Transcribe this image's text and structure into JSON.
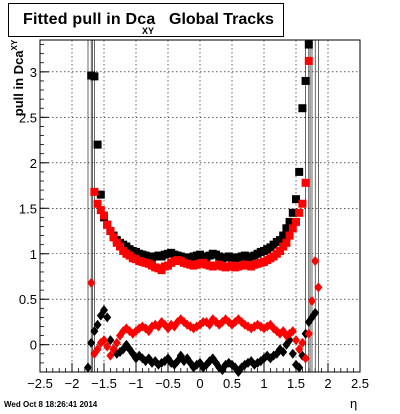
{
  "title": {
    "main": "Fitted pull in Dca",
    "sub": "XY",
    "rest": "Global Tracks"
  },
  "ylabel": {
    "main": "pull in Dca",
    "sub": "XY"
  },
  "xlabel": "η",
  "timestamp": "Wed Oct  8 18:26:41 2014",
  "chart_data": {
    "type": "scatter",
    "xlim": [
      -2.5,
      2.5
    ],
    "ylim": [
      -0.3,
      3.35
    ],
    "xticks": [
      -2.5,
      -2,
      -1.5,
      -1,
      -0.5,
      0,
      0.5,
      1,
      1.5,
      2,
      2.5
    ],
    "xtick_labels": [
      "−2.5",
      "−2",
      "−1.5",
      "−1",
      "−0.5",
      "0",
      "0.5",
      "1",
      "1.5",
      "2",
      "2.5"
    ],
    "yticks": [
      0,
      0.5,
      1,
      1.5,
      2,
      2.5,
      3
    ],
    "ytick_labels": [
      "0",
      "0.5",
      "1",
      "1.5",
      "2",
      "2.5",
      "3"
    ],
    "grid": true,
    "series": [
      {
        "marker": "square",
        "color": "#000000",
        "x": [
          -1.7,
          -1.65,
          -1.6,
          -1.55,
          -1.5,
          -1.45,
          -1.4,
          -1.35,
          -1.3,
          -1.25,
          -1.2,
          -1.15,
          -1.1,
          -1.05,
          -1,
          -0.95,
          -0.9,
          -0.85,
          -0.8,
          -0.75,
          -0.7,
          -0.65,
          -0.6,
          -0.55,
          -0.5,
          -0.45,
          -0.4,
          -0.35,
          -0.3,
          -0.25,
          -0.2,
          -0.15,
          -0.1,
          -0.05,
          0,
          0.05,
          0.1,
          0.15,
          0.2,
          0.25,
          0.3,
          0.35,
          0.4,
          0.45,
          0.5,
          0.55,
          0.6,
          0.65,
          0.7,
          0.75,
          0.8,
          0.85,
          0.9,
          0.95,
          1,
          1.05,
          1.1,
          1.15,
          1.2,
          1.25,
          1.3,
          1.35,
          1.4,
          1.45,
          1.5,
          1.55,
          1.6,
          1.65,
          1.7
        ],
        "y": [
          2.96,
          2.95,
          2.2,
          1.65,
          1.4,
          1.32,
          1.25,
          1.2,
          1.15,
          1.12,
          1.1,
          1.08,
          1.05,
          1.03,
          1.02,
          1.0,
          0.99,
          0.98,
          0.97,
          0.96,
          0.97,
          0.98,
          0.97,
          0.99,
          1.0,
          1.01,
          0.99,
          0.98,
          0.97,
          0.96,
          0.95,
          0.96,
          0.97,
          0.98,
          0.99,
          0.97,
          0.96,
          0.98,
          1.0,
          0.99,
          0.97,
          0.95,
          0.96,
          0.97,
          0.96,
          0.95,
          0.96,
          0.97,
          0.98,
          0.96,
          0.97,
          0.98,
          1.0,
          1.02,
          1.03,
          1.05,
          1.07,
          1.1,
          1.13,
          1.15,
          1.2,
          1.28,
          1.35,
          1.45,
          1.6,
          1.9,
          2.6,
          2.9,
          3.3
        ]
      },
      {
        "marker": "square",
        "color": "#ff0000",
        "x": [
          -1.65,
          -1.6,
          -1.55,
          -1.5,
          -1.45,
          -1.4,
          -1.35,
          -1.3,
          -1.25,
          -1.2,
          -1.15,
          -1.1,
          -1.05,
          -1,
          -0.95,
          -0.9,
          -0.85,
          -0.8,
          -0.75,
          -0.7,
          -0.65,
          -0.6,
          -0.55,
          -0.5,
          -0.45,
          -0.4,
          -0.35,
          -0.3,
          -0.25,
          -0.2,
          -0.15,
          -0.1,
          -0.05,
          0,
          0.05,
          0.1,
          0.15,
          0.2,
          0.25,
          0.3,
          0.35,
          0.4,
          0.45,
          0.5,
          0.55,
          0.6,
          0.65,
          0.7,
          0.75,
          0.8,
          0.85,
          0.9,
          0.95,
          1,
          1.05,
          1.1,
          1.15,
          1.2,
          1.25,
          1.3,
          1.35,
          1.4,
          1.45,
          1.5,
          1.55,
          1.6,
          1.65,
          1.7
        ],
        "y": [
          1.68,
          1.55,
          1.48,
          1.42,
          1.32,
          1.25,
          1.18,
          1.12,
          1.08,
          1.03,
          1.0,
          0.98,
          0.95,
          0.94,
          0.92,
          0.91,
          0.9,
          0.89,
          0.87,
          0.85,
          0.84,
          0.82,
          0.86,
          0.87,
          0.9,
          0.92,
          0.93,
          0.92,
          0.9,
          0.89,
          0.88,
          0.87,
          0.88,
          0.89,
          0.9,
          0.88,
          0.87,
          0.86,
          0.87,
          0.88,
          0.86,
          0.85,
          0.86,
          0.87,
          0.85,
          0.86,
          0.87,
          0.88,
          0.87,
          0.86,
          0.88,
          0.89,
          0.9,
          0.91,
          0.93,
          0.95,
          0.97,
          1.0,
          1.03,
          1.08,
          1.12,
          1.2,
          1.28,
          1.35,
          1.45,
          1.55,
          1.78,
          3.12
        ]
      },
      {
        "marker": "diamond",
        "color": "#000000",
        "x": [
          -1.75,
          -1.7,
          -1.65,
          -1.6,
          -1.55,
          -1.5,
          -1.45,
          -1.4,
          -1.35,
          -1.3,
          -1.25,
          -1.2,
          -1.15,
          -1.1,
          -1.05,
          -1,
          -0.95,
          -0.9,
          -0.85,
          -0.8,
          -0.75,
          -0.7,
          -0.65,
          -0.6,
          -0.55,
          -0.5,
          -0.45,
          -0.4,
          -0.35,
          -0.3,
          -0.25,
          -0.2,
          -0.15,
          -0.1,
          -0.05,
          0,
          0.05,
          0.1,
          0.15,
          0.2,
          0.25,
          0.3,
          0.35,
          0.4,
          0.45,
          0.5,
          0.55,
          0.6,
          0.65,
          0.7,
          0.75,
          0.8,
          0.85,
          0.9,
          0.95,
          1,
          1.05,
          1.1,
          1.15,
          1.2,
          1.25,
          1.3,
          1.35,
          1.4,
          1.45,
          1.5,
          1.55,
          1.6,
          1.65,
          1.7,
          1.75,
          1.8
        ],
        "y": [
          -0.25,
          0.02,
          0.15,
          0.22,
          0.32,
          0.38,
          0.3,
          0.05,
          -0.05,
          -0.1,
          -0.08,
          -0.05,
          0.0,
          -0.05,
          -0.1,
          -0.15,
          -0.12,
          -0.15,
          -0.18,
          -0.15,
          -0.2,
          -0.18,
          -0.22,
          -0.2,
          -0.18,
          -0.15,
          -0.2,
          -0.22,
          -0.18,
          -0.12,
          -0.18,
          -0.15,
          -0.2,
          -0.25,
          -0.22,
          -0.2,
          -0.25,
          -0.22,
          -0.18,
          -0.15,
          -0.2,
          -0.25,
          -0.28,
          -0.22,
          -0.2,
          -0.22,
          -0.25,
          -0.3,
          -0.25,
          -0.22,
          -0.2,
          -0.18,
          -0.22,
          -0.2,
          -0.18,
          -0.15,
          -0.12,
          -0.15,
          -0.12,
          -0.1,
          -0.05,
          -0.08,
          0.0,
          0.05,
          -0.1,
          -0.22,
          -0.25,
          -0.12,
          0.12,
          0.25,
          0.3,
          0.35
        ]
      },
      {
        "marker": "diamond",
        "color": "#ff0000",
        "x": [
          -1.7,
          -1.65,
          -1.6,
          -1.55,
          -1.5,
          -1.45,
          -1.4,
          -1.35,
          -1.3,
          -1.25,
          -1.2,
          -1.15,
          -1.1,
          -1.05,
          -1,
          -0.95,
          -0.9,
          -0.85,
          -0.8,
          -0.75,
          -0.7,
          -0.65,
          -0.6,
          -0.55,
          -0.5,
          -0.45,
          -0.4,
          -0.35,
          -0.3,
          -0.25,
          -0.2,
          -0.15,
          -0.1,
          -0.05,
          0,
          0.05,
          0.1,
          0.15,
          0.2,
          0.25,
          0.3,
          0.35,
          0.4,
          0.45,
          0.5,
          0.55,
          0.6,
          0.65,
          0.7,
          0.75,
          0.8,
          0.85,
          0.9,
          0.95,
          1,
          1.05,
          1.1,
          1.15,
          1.2,
          1.25,
          1.3,
          1.35,
          1.4,
          1.45,
          1.5,
          1.55,
          1.6,
          1.65,
          1.7,
          1.75,
          1.8,
          1.85
        ],
        "y": [
          0.68,
          -0.1,
          -0.05,
          0.02,
          0.05,
          -0.02,
          -0.12,
          -0.05,
          0.02,
          0.1,
          0.15,
          0.18,
          0.15,
          0.12,
          0.15,
          0.18,
          0.2,
          0.18,
          0.15,
          0.2,
          0.22,
          0.2,
          0.25,
          0.22,
          0.18,
          0.22,
          0.2,
          0.25,
          0.28,
          0.25,
          0.22,
          0.2,
          0.18,
          0.2,
          0.22,
          0.25,
          0.25,
          0.22,
          0.28,
          0.25,
          0.22,
          0.25,
          0.28,
          0.25,
          0.22,
          0.25,
          0.28,
          0.25,
          0.22,
          0.2,
          0.18,
          0.2,
          0.22,
          0.2,
          0.18,
          0.2,
          0.22,
          0.18,
          0.15,
          0.12,
          0.15,
          0.1,
          0.12,
          0.15,
          0.05,
          -0.05,
          0.02,
          -0.15,
          0.12,
          0.48,
          0.92,
          0.63
        ]
      }
    ]
  }
}
